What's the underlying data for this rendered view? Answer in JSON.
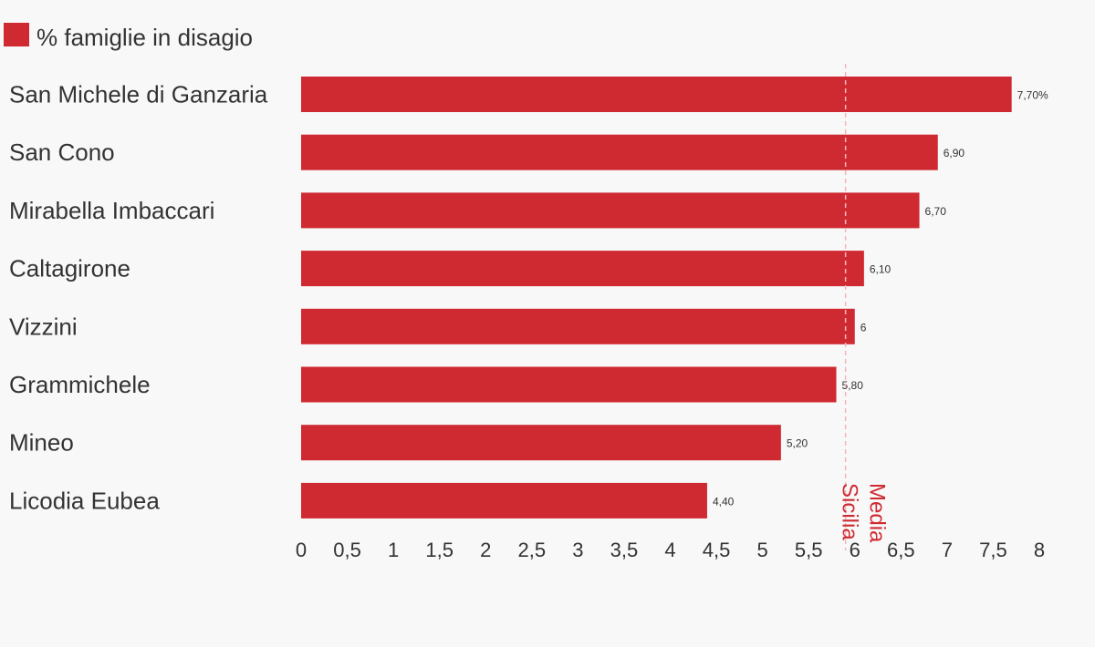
{
  "chart_data": {
    "type": "bar",
    "orientation": "horizontal",
    "categories": [
      "San Michele di Ganzaria",
      "San Cono",
      "Mirabella Imbaccari",
      "Caltagirone",
      "Vizzini",
      "Grammichele",
      "Mineo",
      "Licodia Eubea"
    ],
    "series": [
      {
        "name": "% famiglie in disagio",
        "values": [
          7.7,
          6.9,
          6.7,
          6.1,
          6.0,
          5.8,
          5.2,
          4.4
        ],
        "labels": [
          "7,70%",
          "6,90",
          "6,70",
          "6,10",
          "6",
          "5,80",
          "5,20",
          "4,40"
        ],
        "color": "#cf2a32"
      }
    ],
    "xlim": [
      0,
      8
    ],
    "x_ticks": [
      0,
      0.5,
      1,
      1.5,
      2,
      2.5,
      3,
      3.5,
      4,
      4.5,
      5,
      5.5,
      6,
      6.5,
      7,
      7.5,
      8
    ],
    "x_tick_labels": [
      "0",
      "0,5",
      "1",
      "1,5",
      "2",
      "2,5",
      "3",
      "3,5",
      "4",
      "4,5",
      "5",
      "5,5",
      "6",
      "6,5",
      "7",
      "7,5",
      "8"
    ],
    "reference_line": {
      "value": 5.9,
      "label_lines": [
        "Media",
        "Sicilia"
      ],
      "color": "#f2b8bb",
      "label_color": "#cf2a32"
    },
    "legend_position": "top-left",
    "grid": false
  }
}
